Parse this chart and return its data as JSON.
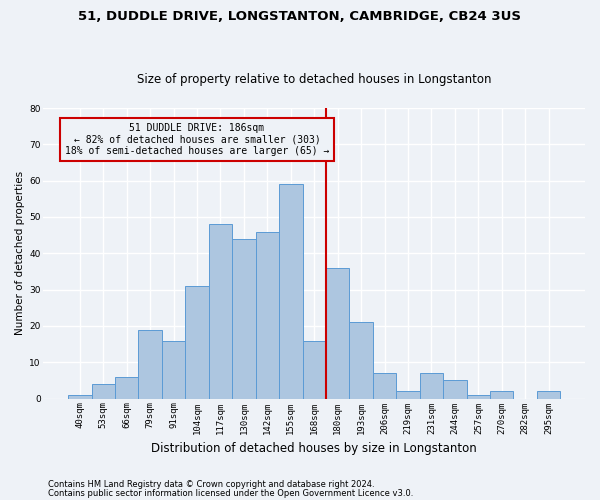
{
  "title1": "51, DUDDLE DRIVE, LONGSTANTON, CAMBRIDGE, CB24 3US",
  "title2": "Size of property relative to detached houses in Longstanton",
  "xlabel": "Distribution of detached houses by size in Longstanton",
  "ylabel": "Number of detached properties",
  "footer1": "Contains HM Land Registry data © Crown copyright and database right 2024.",
  "footer2": "Contains public sector information licensed under the Open Government Licence v3.0.",
  "categories": [
    "40sqm",
    "53sqm",
    "66sqm",
    "79sqm",
    "91sqm",
    "104sqm",
    "117sqm",
    "130sqm",
    "142sqm",
    "155sqm",
    "168sqm",
    "180sqm",
    "193sqm",
    "206sqm",
    "219sqm",
    "231sqm",
    "244sqm",
    "257sqm",
    "270sqm",
    "282sqm",
    "295sqm"
  ],
  "values": [
    1,
    4,
    6,
    19,
    16,
    31,
    48,
    44,
    46,
    59,
    16,
    36,
    21,
    7,
    2,
    7,
    5,
    1,
    2,
    0,
    2
  ],
  "bar_color": "#adc6e0",
  "bar_edge_color": "#5b9bd5",
  "background_color": "#eef2f7",
  "grid_color": "#ffffff",
  "property_line_x": 10.5,
  "annotation_text": "51 DUDDLE DRIVE: 186sqm\n← 82% of detached houses are smaller (303)\n18% of semi-detached houses are larger (65) →",
  "annotation_box_color": "#cc0000",
  "ylim": [
    0,
    80
  ],
  "yticks": [
    0,
    10,
    20,
    30,
    40,
    50,
    60,
    70,
    80
  ],
  "title1_fontsize": 9.5,
  "title2_fontsize": 8.5,
  "ylabel_fontsize": 7.5,
  "xlabel_fontsize": 8.5,
  "tick_fontsize": 6.5,
  "annotation_fontsize": 7,
  "footer_fontsize": 6
}
